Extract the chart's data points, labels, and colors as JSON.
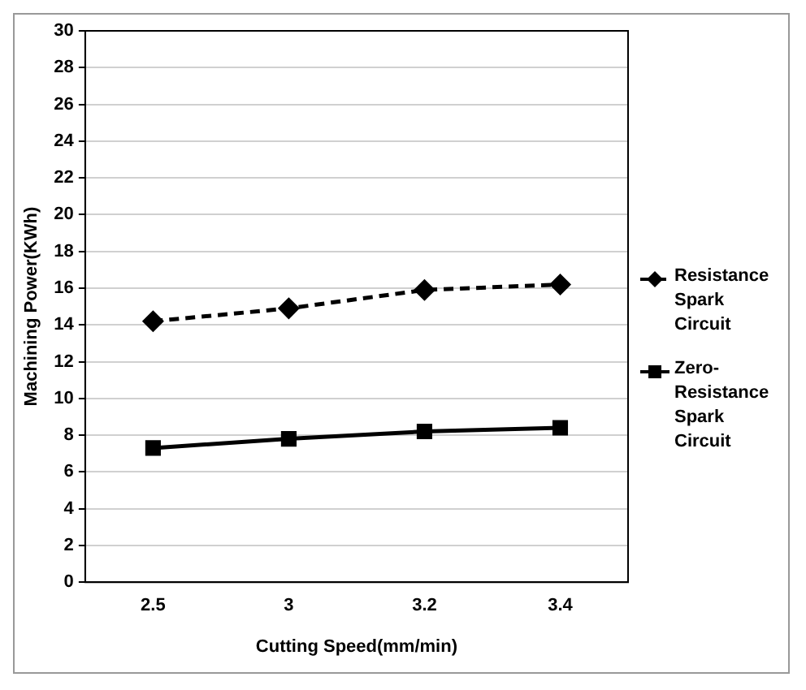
{
  "chart_data": {
    "type": "line",
    "xlabel": "Cutting Speed(mm/min)",
    "ylabel": "Machining Power(KWh)",
    "categories": [
      "2.5",
      "3",
      "3.2",
      "3.4"
    ],
    "series": [
      {
        "name": "Resistance Spark Circuit",
        "color": "#000000",
        "values": [
          14.2,
          14.9,
          15.9,
          16.2
        ],
        "line_style": "dashed",
        "marker": "diamond"
      },
      {
        "name": "Zero-Resistance Spark Circuit",
        "color": "#000000",
        "values": [
          7.3,
          7.8,
          8.2,
          8.4
        ],
        "line_style": "solid",
        "marker": "square"
      }
    ],
    "ylim": [
      0,
      30
    ],
    "yticks": [
      0,
      2,
      4,
      6,
      8,
      10,
      12,
      14,
      16,
      18,
      20,
      22,
      24,
      26,
      28,
      30
    ],
    "grid": "y",
    "legend": "right"
  }
}
